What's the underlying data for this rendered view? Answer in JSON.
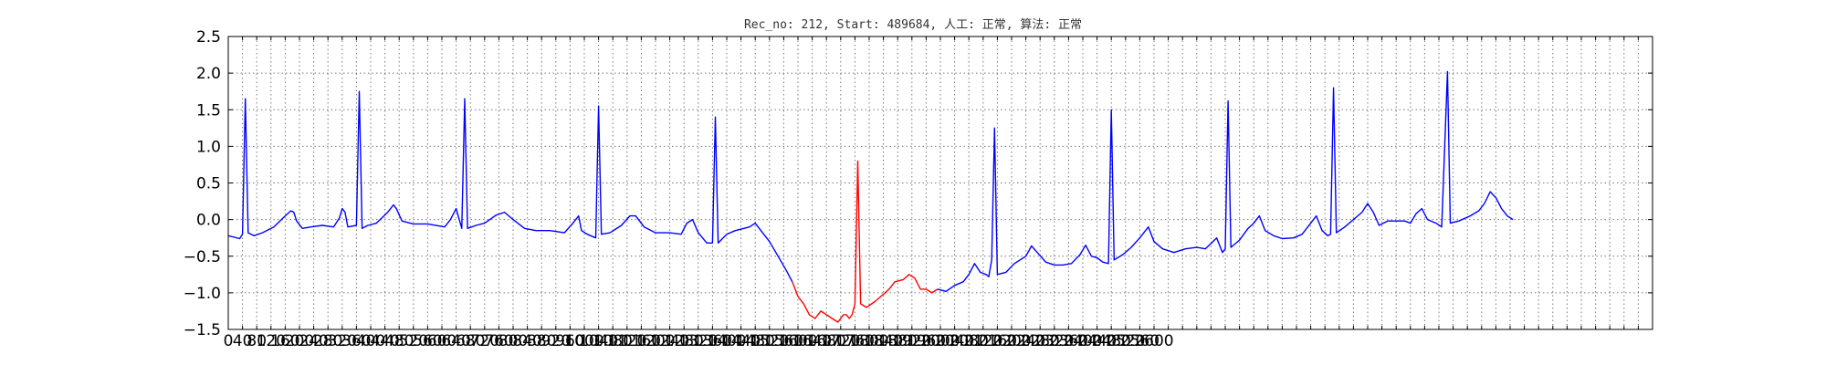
{
  "chart_data": {
    "type": "line",
    "title": "Rec_no: 212, Start: 489684, 人工: 正常, 算法: 正常",
    "xlabel": "",
    "ylabel": "",
    "xlim": [
      0,
      1000
    ],
    "ylim": [
      -1.5,
      2.5
    ],
    "grid": true,
    "x_tick_labels": [
      "0",
      "40",
      "80",
      "120",
      "160",
      "200",
      "240",
      "280",
      "320",
      "360",
      "400",
      "440",
      "480",
      "520",
      "560",
      "600",
      "640",
      "680",
      "720",
      "760",
      "800",
      "840",
      "880",
      "920",
      "960",
      "1000",
      "1040",
      "1080",
      "1120",
      "1160",
      "1200",
      "1240",
      "1280",
      "1320",
      "1360",
      "1400",
      "1440",
      "1480",
      "1520",
      "1560",
      "1600",
      "1640",
      "1680",
      "1720",
      "1760",
      "1800",
      "1840",
      "1880",
      "1920",
      "1960",
      "2000",
      "2040",
      "2080",
      "2120",
      "2160",
      "2200",
      "2240",
      "2280",
      "2320",
      "2360",
      "2400",
      "2440",
      "2480",
      "2520",
      "2560",
      "2600"
    ],
    "y_ticks": [
      -1.5,
      -1.0,
      -0.5,
      0.0,
      0.5,
      1.0,
      1.5,
      2.0,
      2.5
    ],
    "y_tick_labels": [
      "−1.5",
      "−1.0",
      "−0.5",
      "0.0",
      "0.5",
      "1.0",
      "1.5",
      "2.0",
      "2.5"
    ],
    "series": [
      {
        "color": "#0000ff",
        "points": [
          [
            0,
            -0.22
          ],
          [
            8,
            -0.26
          ],
          [
            10,
            -0.2
          ],
          [
            12,
            1.65
          ],
          [
            14,
            -0.18
          ],
          [
            18,
            -0.22
          ],
          [
            24,
            -0.18
          ],
          [
            32,
            -0.1
          ],
          [
            40,
            0.05
          ],
          [
            44,
            0.12
          ],
          [
            46,
            0.1
          ],
          [
            48,
            -0.02
          ],
          [
            52,
            -0.12
          ],
          [
            58,
            -0.1
          ],
          [
            66,
            -0.08
          ],
          [
            74,
            -0.1
          ],
          [
            78,
            0.02
          ],
          [
            80,
            0.15
          ],
          [
            82,
            0.1
          ],
          [
            84,
            -0.1
          ],
          [
            90,
            -0.08
          ],
          [
            92,
            1.75
          ],
          [
            94,
            -0.12
          ],
          [
            98,
            -0.08
          ],
          [
            104,
            -0.05
          ],
          [
            112,
            0.1
          ],
          [
            116,
            0.2
          ],
          [
            118,
            0.15
          ],
          [
            122,
            -0.02
          ],
          [
            130,
            -0.06
          ],
          [
            140,
            -0.06
          ],
          [
            152,
            -0.1
          ],
          [
            156,
            0.0
          ],
          [
            160,
            0.15
          ],
          [
            164,
            -0.12
          ],
          [
            166,
            1.65
          ],
          [
            168,
            -0.12
          ],
          [
            174,
            -0.08
          ],
          [
            180,
            -0.05
          ],
          [
            188,
            0.06
          ],
          [
            194,
            0.1
          ],
          [
            200,
            0.0
          ],
          [
            208,
            -0.12
          ],
          [
            216,
            -0.15
          ],
          [
            226,
            -0.15
          ],
          [
            236,
            -0.18
          ],
          [
            242,
            -0.05
          ],
          [
            246,
            0.05
          ],
          [
            248,
            -0.15
          ],
          [
            252,
            -0.2
          ],
          [
            258,
            -0.25
          ],
          [
            260,
            1.55
          ],
          [
            262,
            -0.2
          ],
          [
            268,
            -0.18
          ],
          [
            276,
            -0.08
          ],
          [
            282,
            0.05
          ],
          [
            286,
            0.05
          ],
          [
            292,
            -0.1
          ],
          [
            300,
            -0.18
          ],
          [
            310,
            -0.18
          ],
          [
            318,
            -0.2
          ],
          [
            322,
            -0.05
          ],
          [
            326,
            0.0
          ],
          [
            330,
            -0.18
          ],
          [
            336,
            -0.32
          ],
          [
            340,
            -0.32
          ],
          [
            342,
            1.4
          ],
          [
            344,
            -0.32
          ],
          [
            350,
            -0.2
          ],
          [
            356,
            -0.15
          ],
          [
            366,
            -0.1
          ],
          [
            370,
            -0.05
          ],
          [
            374,
            -0.15
          ],
          [
            380,
            -0.3
          ],
          [
            386,
            -0.5
          ],
          [
            392,
            -0.7
          ],
          [
            396,
            -0.85
          ]
        ]
      },
      {
        "color": "#ff0000",
        "points": [
          [
            396,
            -0.85
          ],
          [
            400,
            -1.05
          ],
          [
            404,
            -1.15
          ],
          [
            408,
            -1.3
          ],
          [
            412,
            -1.35
          ],
          [
            416,
            -1.25
          ],
          [
            420,
            -1.3
          ],
          [
            424,
            -1.35
          ],
          [
            428,
            -1.4
          ],
          [
            432,
            -1.3
          ],
          [
            434,
            -1.3
          ],
          [
            436,
            -1.35
          ],
          [
            438,
            -1.3
          ],
          [
            440,
            -1.15
          ],
          [
            442,
            0.8
          ],
          [
            444,
            -1.15
          ],
          [
            448,
            -1.2
          ],
          [
            454,
            -1.12
          ],
          [
            460,
            -1.02
          ],
          [
            464,
            -0.95
          ],
          [
            468,
            -0.85
          ],
          [
            474,
            -0.82
          ],
          [
            478,
            -0.75
          ],
          [
            482,
            -0.8
          ],
          [
            486,
            -0.95
          ],
          [
            490,
            -0.95
          ],
          [
            494,
            -1.0
          ],
          [
            498,
            -0.95
          ]
        ]
      },
      {
        "color": "#0000ff",
        "points": [
          [
            498,
            -0.95
          ],
          [
            504,
            -0.98
          ],
          [
            510,
            -0.9
          ],
          [
            516,
            -0.85
          ],
          [
            520,
            -0.75
          ],
          [
            524,
            -0.6
          ],
          [
            528,
            -0.72
          ],
          [
            532,
            -0.75
          ],
          [
            534,
            -0.78
          ],
          [
            536,
            -0.55
          ],
          [
            538,
            1.25
          ],
          [
            540,
            -0.75
          ],
          [
            546,
            -0.72
          ],
          [
            552,
            -0.6
          ],
          [
            560,
            -0.5
          ],
          [
            564,
            -0.36
          ],
          [
            568,
            -0.45
          ],
          [
            574,
            -0.58
          ],
          [
            580,
            -0.62
          ],
          [
            586,
            -0.62
          ],
          [
            592,
            -0.6
          ],
          [
            598,
            -0.48
          ],
          [
            602,
            -0.35
          ],
          [
            606,
            -0.5
          ],
          [
            610,
            -0.52
          ],
          [
            614,
            -0.58
          ],
          [
            618,
            -0.6
          ],
          [
            620,
            1.5
          ],
          [
            622,
            -0.55
          ],
          [
            628,
            -0.48
          ],
          [
            634,
            -0.38
          ],
          [
            640,
            -0.25
          ],
          [
            646,
            -0.1
          ],
          [
            650,
            -0.3
          ],
          [
            656,
            -0.4
          ],
          [
            664,
            -0.45
          ],
          [
            672,
            -0.4
          ],
          [
            680,
            -0.38
          ],
          [
            686,
            -0.4
          ],
          [
            694,
            -0.25
          ],
          [
            698,
            -0.45
          ],
          [
            700,
            -0.4
          ],
          [
            702,
            1.62
          ],
          [
            704,
            -0.38
          ],
          [
            710,
            -0.28
          ],
          [
            716,
            -0.12
          ],
          [
            720,
            -0.05
          ],
          [
            724,
            0.05
          ],
          [
            728,
            -0.15
          ],
          [
            734,
            -0.22
          ],
          [
            740,
            -0.26
          ],
          [
            748,
            -0.25
          ],
          [
            754,
            -0.2
          ],
          [
            760,
            -0.05
          ],
          [
            764,
            0.05
          ],
          [
            768,
            -0.15
          ],
          [
            772,
            -0.22
          ],
          [
            774,
            -0.2
          ],
          [
            776,
            1.8
          ],
          [
            778,
            -0.18
          ],
          [
            784,
            -0.1
          ],
          [
            790,
            0.0
          ],
          [
            796,
            0.1
          ],
          [
            800,
            0.22
          ],
          [
            804,
            0.1
          ],
          [
            808,
            -0.08
          ],
          [
            814,
            -0.02
          ],
          [
            820,
            -0.02
          ],
          [
            826,
            -0.02
          ],
          [
            830,
            -0.05
          ],
          [
            834,
            0.08
          ],
          [
            838,
            0.15
          ],
          [
            842,
            0.0
          ],
          [
            848,
            -0.05
          ],
          [
            852,
            -0.1
          ],
          [
            856,
            2.02
          ],
          [
            858,
            -0.05
          ],
          [
            864,
            -0.02
          ],
          [
            872,
            0.05
          ],
          [
            878,
            0.12
          ],
          [
            882,
            0.22
          ],
          [
            886,
            0.38
          ],
          [
            890,
            0.3
          ],
          [
            894,
            0.15
          ],
          [
            898,
            0.05
          ],
          [
            902,
            0.0
          ]
        ]
      }
    ]
  }
}
